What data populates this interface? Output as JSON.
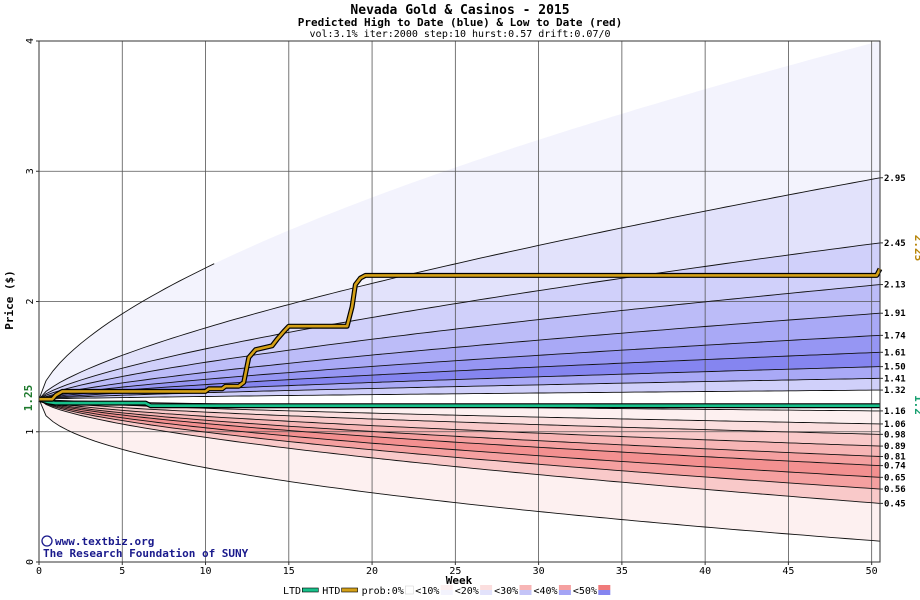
{
  "chart_data": {
    "type": "area",
    "title": "Nevada Gold & Casinos - 2015",
    "subtitle": "Predicted High to Date (blue) &  Low to Date (red)",
    "params": "vol:3.1% iter:2000 step:10 hurst:0.57 drift:0.07/0",
    "xlabel": "Week",
    "ylabel": "Price ($)",
    "xlim": [
      0,
      50.5
    ],
    "ylim": [
      0,
      4
    ],
    "x_ticks": [
      0,
      5,
      10,
      15,
      20,
      25,
      30,
      35,
      40,
      45,
      50
    ],
    "y_ticks": [
      0,
      1,
      2,
      3,
      4
    ],
    "grid": true,
    "start_price": "1.25",
    "current_high_label": "2.25",
    "current_low_label": "1.2",
    "quantile_lines": [
      {
        "end": 4.0,
        "exp": 0.62,
        "limit_x": 10.3
      },
      {
        "end": 2.95,
        "exp": 0.7
      },
      {
        "end": 2.45,
        "exp": 0.7
      },
      {
        "end": 2.13,
        "exp": 0.7
      },
      {
        "end": 1.91,
        "exp": 0.72
      },
      {
        "end": 1.74,
        "exp": 0.72
      },
      {
        "end": 1.61,
        "exp": 0.72
      },
      {
        "end": 1.5,
        "exp": 0.72
      },
      {
        "end": 1.41,
        "exp": 0.72
      },
      {
        "end": 1.32,
        "exp": 0.75
      },
      {
        "end": 1.16,
        "exp": 0.6
      },
      {
        "end": 1.06,
        "exp": 0.62
      },
      {
        "end": 0.98,
        "exp": 0.62
      },
      {
        "end": 0.89,
        "exp": 0.62
      },
      {
        "end": 0.81,
        "exp": 0.62
      },
      {
        "end": 0.74,
        "exp": 0.62
      },
      {
        "end": 0.65,
        "exp": 0.62
      },
      {
        "end": 0.56,
        "exp": 0.62
      },
      {
        "end": 0.45,
        "exp": 0.62
      },
      {
        "end": 0.16,
        "exp": 0.45
      }
    ],
    "right_labels": [
      "2.95",
      "2.45",
      "2.13",
      "1.91",
      "1.74",
      "1.61",
      "1.50",
      "1.41",
      "1.32",
      "1.16",
      "1.06",
      "0.98",
      "0.89",
      "0.81",
      "0.74",
      "0.65",
      "0.56",
      "0.45"
    ],
    "band_colors": [
      "#f3f3fd",
      "#e2e2fb",
      "#d0d0fa",
      "#bcbcf8",
      "#a9a9f6",
      "#9696f3",
      "#8585f0",
      "#a9a9f6",
      "#d0d0fa",
      "#ffffff",
      "#fdf0f0",
      "#fbdede",
      "#f9c9c9",
      "#f7b5b5",
      "#f5a0a0",
      "#f39090",
      "#f5a0a0",
      "#f9c9c9",
      "#fdf0f0"
    ],
    "high_to_date": {
      "name": "HTD",
      "color": "#d4a017",
      "x": [
        0,
        0.8,
        1.0,
        1.4,
        10.0,
        10.2,
        11.0,
        11.2,
        12.0,
        12.3,
        12.6,
        13.0,
        14.0,
        14.3,
        14.7,
        15.0,
        18.5,
        18.8,
        19.0,
        19.3,
        19.6,
        50.3,
        50.5
      ],
      "y": [
        1.25,
        1.25,
        1.28,
        1.31,
        1.31,
        1.33,
        1.33,
        1.35,
        1.35,
        1.38,
        1.57,
        1.63,
        1.66,
        1.71,
        1.77,
        1.81,
        1.81,
        1.96,
        2.13,
        2.18,
        2.2,
        2.2,
        2.25
      ]
    },
    "low_to_date": {
      "name": "LTD",
      "color": "#18c08a",
      "x": [
        0,
        0.5,
        1.0,
        6.4,
        6.7,
        10.0,
        50.5
      ],
      "y": [
        1.25,
        1.23,
        1.22,
        1.22,
        1.2,
        1.2,
        1.2
      ]
    },
    "legend": [
      {
        "label": "LTD",
        "swatch": "line",
        "color": "#18c08a"
      },
      {
        "label": "HTD",
        "swatch": "line",
        "color": "#d4a017"
      },
      {
        "label": "prob:0%",
        "swatch": "box",
        "color": "#ffffff"
      },
      {
        "label": "<10%",
        "swatch": "split",
        "color": "#f3f3fd",
        "color2": "#fdf0f0"
      },
      {
        "label": "<20%",
        "swatch": "split",
        "color": "#e2e2fb",
        "color2": "#fbdede"
      },
      {
        "label": "<30%",
        "swatch": "split",
        "color": "#c4c4f7",
        "color2": "#f7b5b5"
      },
      {
        "label": "<40%",
        "swatch": "split",
        "color": "#a4a4f5",
        "color2": "#f5a0a0"
      },
      {
        "label": "<50%",
        "swatch": "split",
        "color": "#8585f0",
        "color2": "#f07a7a"
      }
    ]
  },
  "credits": {
    "site": "www.textbiz.org",
    "copyright_symbol": "©",
    "org": "The Research Foundation of SUNY"
  }
}
